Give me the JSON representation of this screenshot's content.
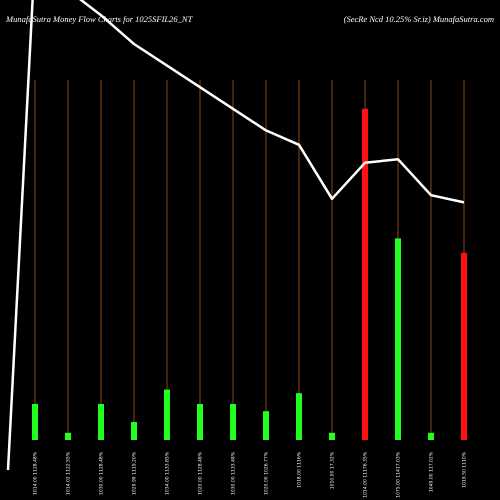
{
  "header": {
    "left_title": "MunafaSutra  Money Flow  Charts for 1025SFIL26_NT",
    "right_title": "(SecRe    Ncd 10.25% Sr.iz) MunafaSutra.com"
  },
  "chart_data": {
    "type": "bar",
    "title": "MunafaSutra  Money Flow  Charts for 1025SFIL26_NT",
    "xlabel": "",
    "ylabel": "",
    "categories": [
      "1014.00  1128.48%",
      "1014.02  1122.55%",
      "1030.00  1128.48%",
      "1029.99  1119.20%",
      "1034.00  1133.85%",
      "1020.00  1128.48%",
      "1030.00  1133.48%",
      "1020.00  1026.77%",
      "1018.00  1116%",
      "1010.00  17.32%",
      "1014.00  11176.35%",
      "1075.00  11417.03%",
      "1049.00  117.02%",
      "1019.50  1110%"
    ],
    "series": [
      {
        "values": [
          10,
          2,
          10,
          5,
          14,
          10,
          10,
          8,
          13,
          2,
          92,
          56,
          2,
          52
        ],
        "colors": [
          "#22ff22",
          "#22ff22",
          "#22ff22",
          "#22ff22",
          "#22ff22",
          "#22ff22",
          "#22ff22",
          "#22ff22",
          "#22ff22",
          "#22ff22",
          "#ff1111",
          "#22ff22",
          "#22ff22",
          "#ff1111"
        ]
      }
    ],
    "price_line": [
      135,
      125,
      118,
      110,
      104,
      98,
      92,
      86,
      82,
      67,
      77,
      78,
      68,
      66
    ],
    "ylim": [
      0,
      100
    ],
    "price_ylim": [
      0,
      100
    ],
    "grid": "vertical",
    "colors": {
      "up": "#22ff22",
      "down": "#ff1111",
      "gridline": "#8a4a12",
      "line": "#ffffff",
      "background": "#000000"
    }
  }
}
